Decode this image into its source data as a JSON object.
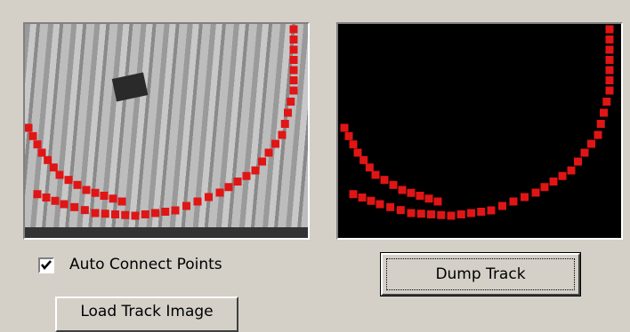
{
  "auto_connect": {
    "label": "Auto Connect Points",
    "checked": true
  },
  "dump_button": {
    "label": "Dump Track"
  },
  "load_button": {
    "label": "Load Track Image"
  }
}
